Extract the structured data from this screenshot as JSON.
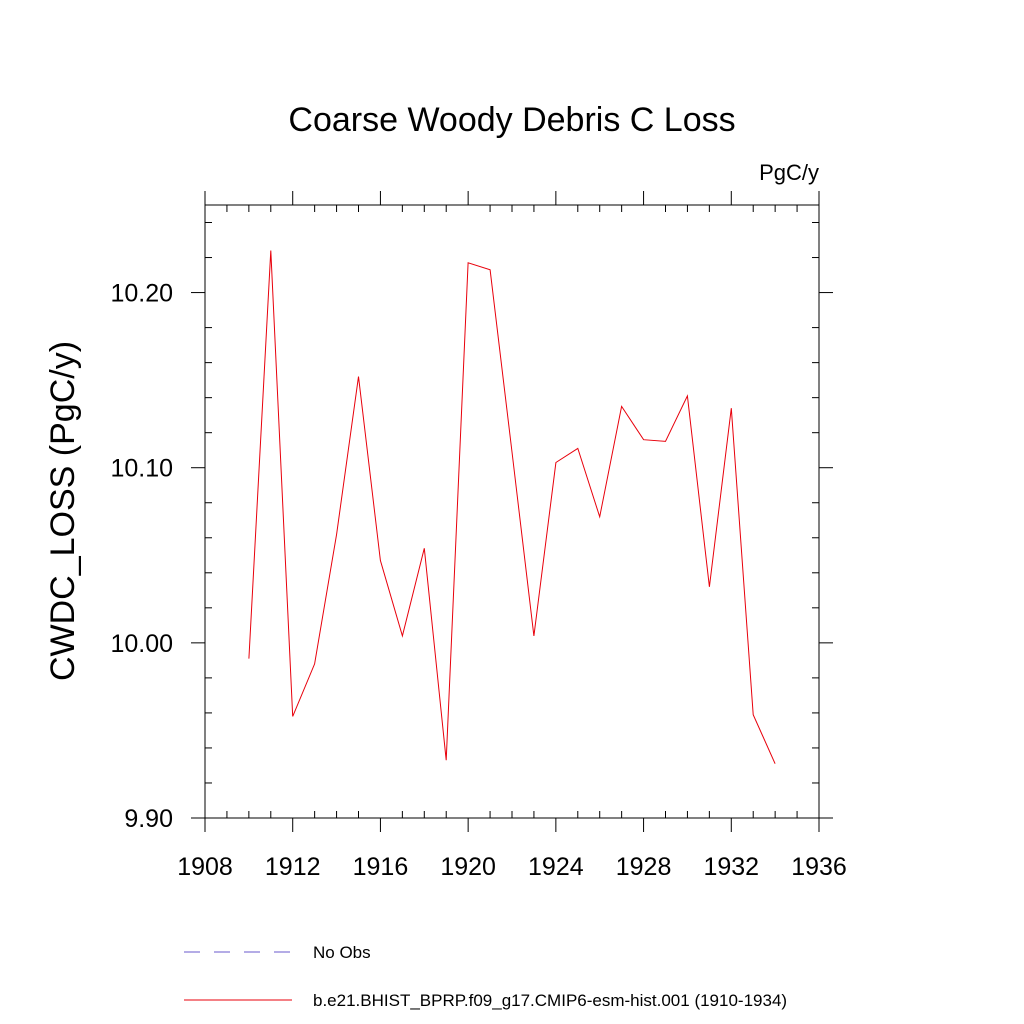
{
  "chart_data": {
    "type": "line",
    "title": "Coarse Woody Debris C Loss",
    "units": "PgC/y",
    "xlabel": "",
    "ylabel": "CWDC_LOSS  (PgC/y)",
    "xlim": [
      1908,
      1936
    ],
    "ylim": [
      9.9,
      10.25
    ],
    "xticks": [
      1908,
      1912,
      1916,
      1920,
      1924,
      1928,
      1932,
      1936
    ],
    "xtick_labels": [
      "1908",
      "1912",
      "1916",
      "1920",
      "1924",
      "1928",
      "1932",
      "1936"
    ],
    "yticks": [
      9.9,
      10.0,
      10.1,
      10.2
    ],
    "ytick_labels": [
      "9.90",
      "10.00",
      "10.10",
      "10.20"
    ],
    "grid": false,
    "legend_position": "bottom",
    "series": [
      {
        "name": "No Obs",
        "color": "#6a5acd",
        "dash": "dashed",
        "x": [],
        "y": []
      },
      {
        "name": "b.e21.BHIST_BPRP.f09_g17.CMIP6-esm-hist.001 (1910-1934)",
        "color": "#e8000b",
        "dash": "solid",
        "x": [
          1910,
          1911,
          1912,
          1913,
          1914,
          1915,
          1916,
          1917,
          1918,
          1919,
          1920,
          1921,
          1922,
          1923,
          1924,
          1925,
          1926,
          1927,
          1928,
          1929,
          1930,
          1931,
          1932,
          1933,
          1934
        ],
        "y": [
          9.991,
          10.224,
          9.958,
          9.988,
          10.062,
          10.152,
          10.047,
          10.004,
          10.054,
          9.933,
          10.217,
          10.213,
          10.109,
          10.004,
          10.103,
          10.111,
          10.072,
          10.135,
          10.116,
          10.115,
          10.141,
          10.032,
          10.134,
          9.959,
          9.931
        ]
      }
    ]
  }
}
